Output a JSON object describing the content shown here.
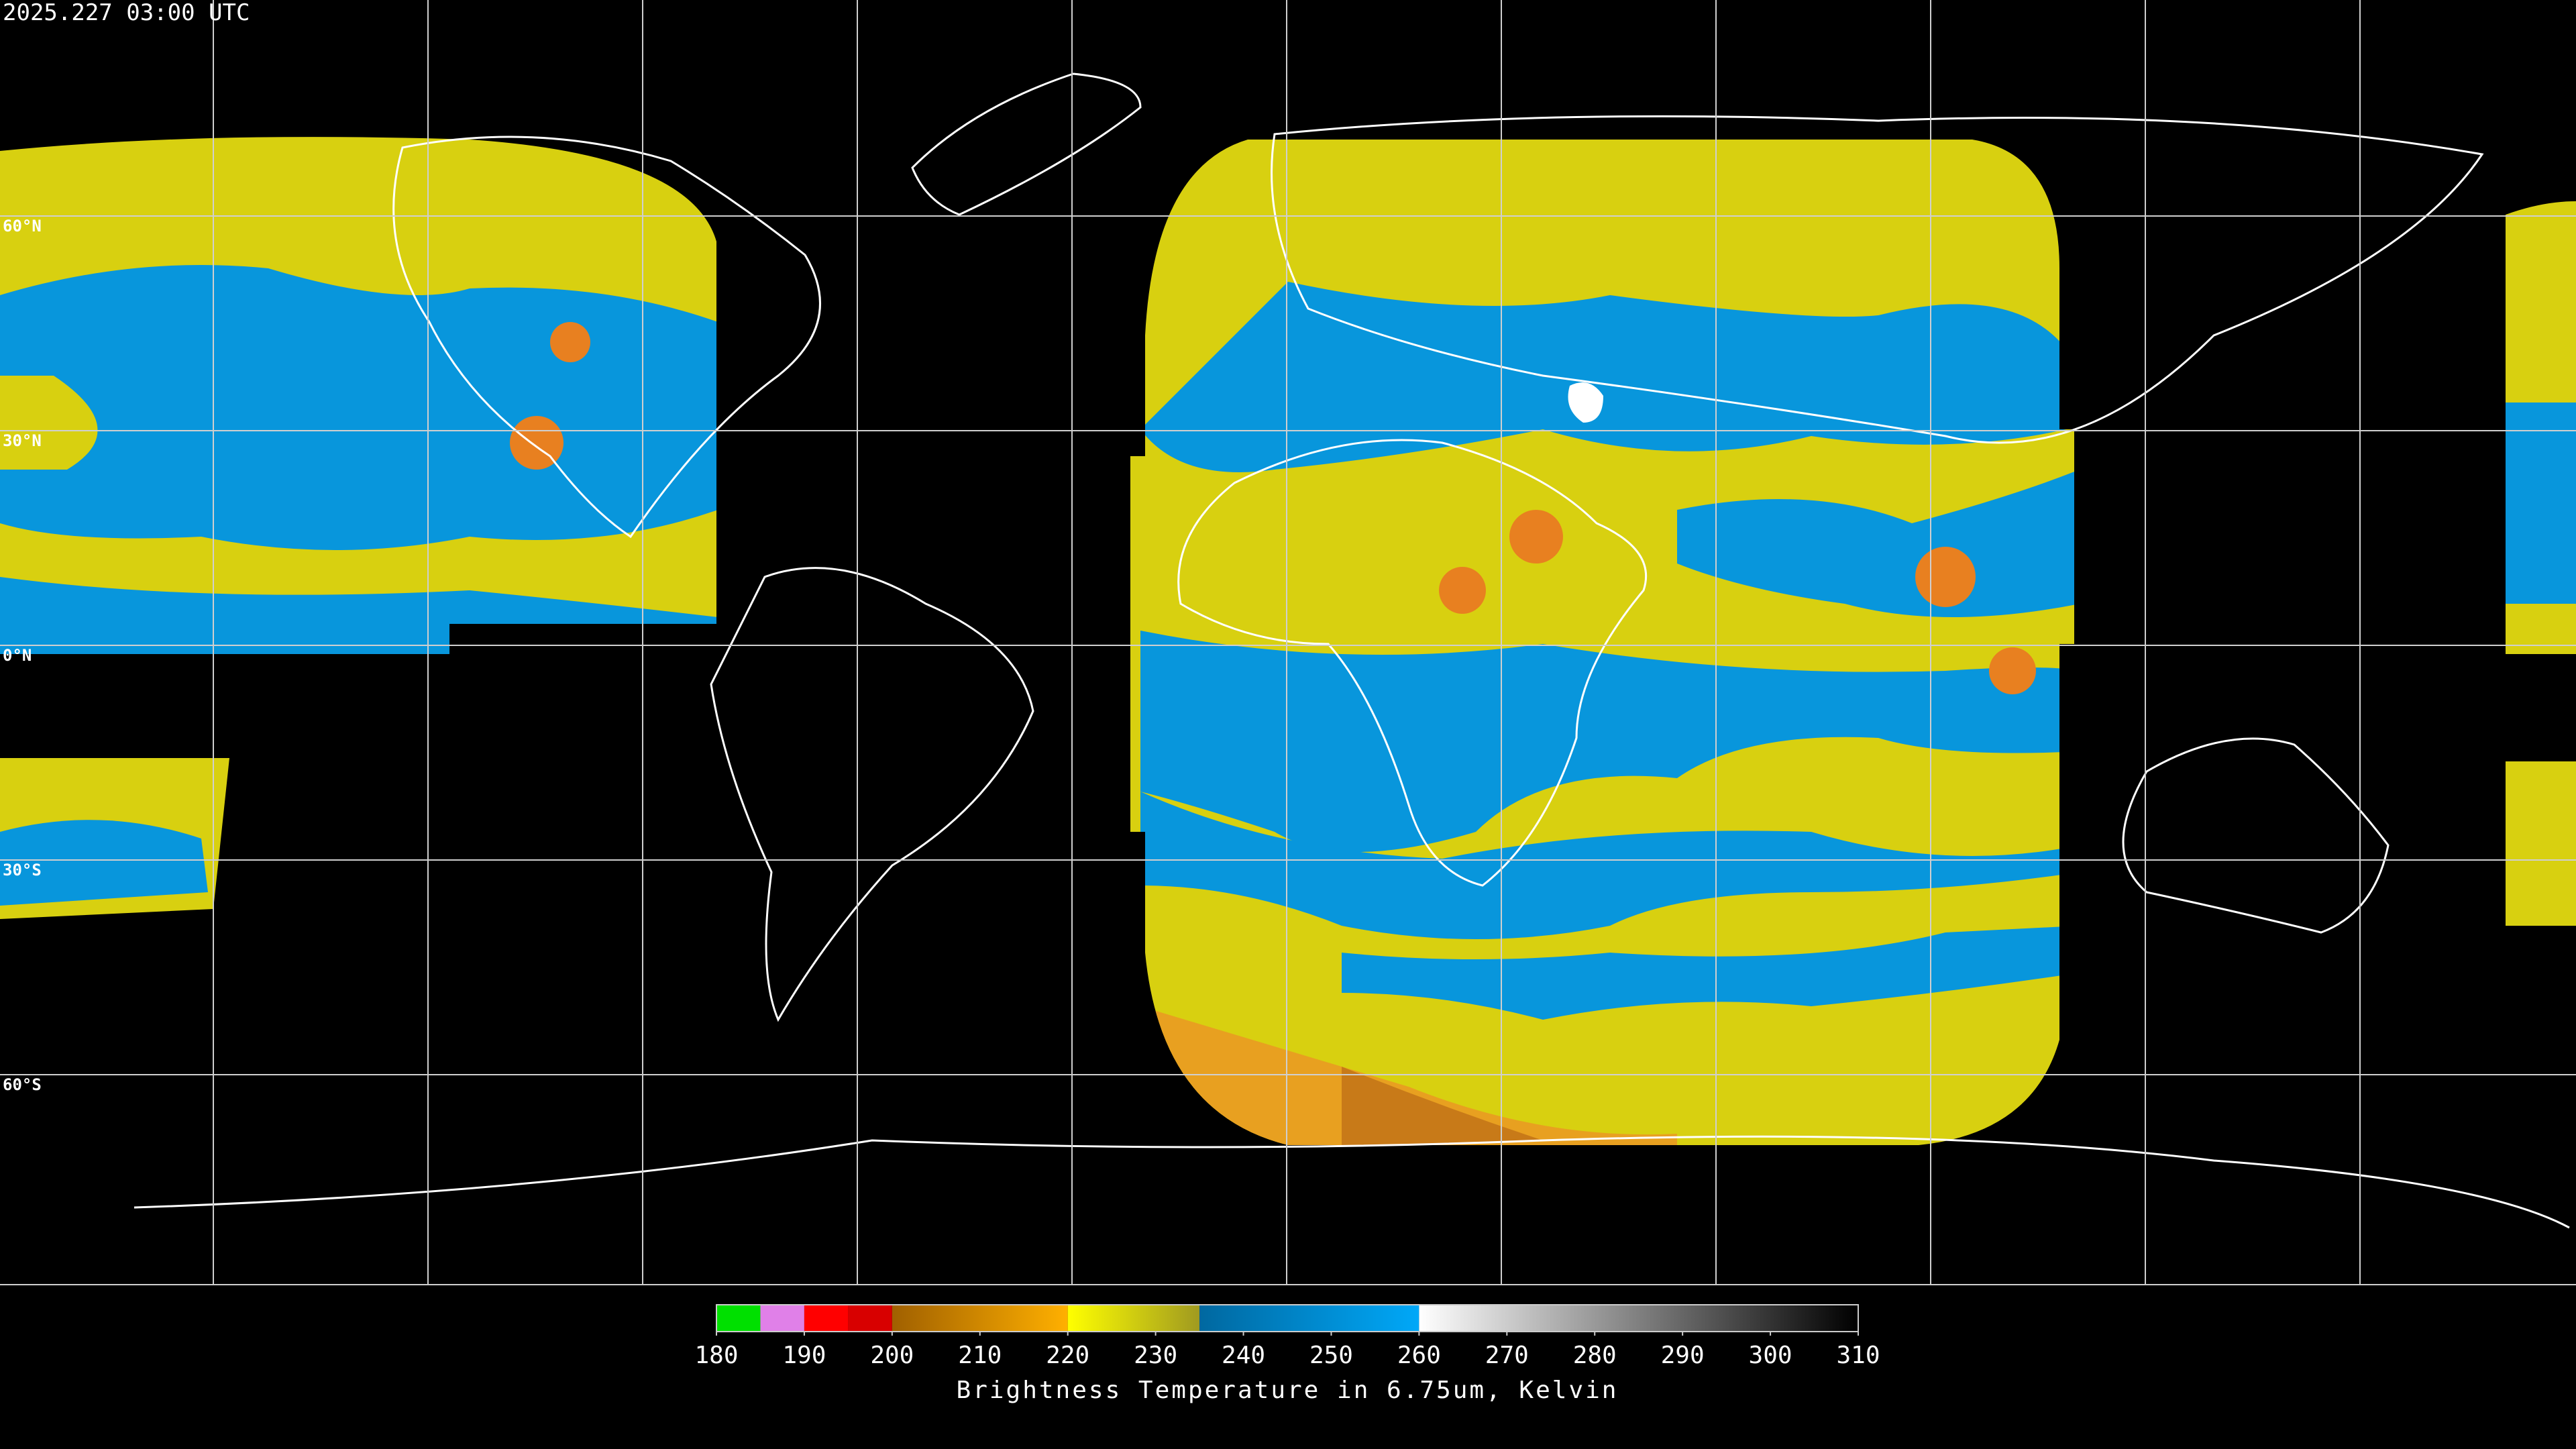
{
  "header": {
    "timestamp": "2025.227 03:00 UTC"
  },
  "grid_labels": [
    "60°N",
    "30°N",
    "0°N",
    "30°S",
    "60°S"
  ],
  "colorbar": {
    "label": "Brightness Temperature in 6.75um, Kelvin",
    "range": [
      180,
      310
    ],
    "ticks": [
      180,
      190,
      200,
      210,
      220,
      230,
      240,
      250,
      260,
      270,
      280,
      290,
      300,
      310
    ],
    "segments": [
      {
        "from": 180,
        "to": 185,
        "colors": [
          "#00e000",
          "#00e000"
        ]
      },
      {
        "from": 185,
        "to": 190,
        "colors": [
          "#e080e8",
          "#e080e8"
        ]
      },
      {
        "from": 190,
        "to": 195,
        "colors": [
          "#ff0000",
          "#ff0000"
        ]
      },
      {
        "from": 195,
        "to": 200,
        "colors": [
          "#d80000",
          "#d80000"
        ]
      },
      {
        "from": 200,
        "to": 220,
        "colors": [
          "#a06000",
          "#ffb000"
        ]
      },
      {
        "from": 220,
        "to": 235,
        "colors": [
          "#ffff00",
          "#a09a20"
        ]
      },
      {
        "from": 235,
        "to": 260,
        "colors": [
          "#0068a0",
          "#00a8f8"
        ]
      },
      {
        "from": 260,
        "to": 310,
        "colors": [
          "#ffffff",
          "#000000"
        ]
      }
    ]
  }
}
